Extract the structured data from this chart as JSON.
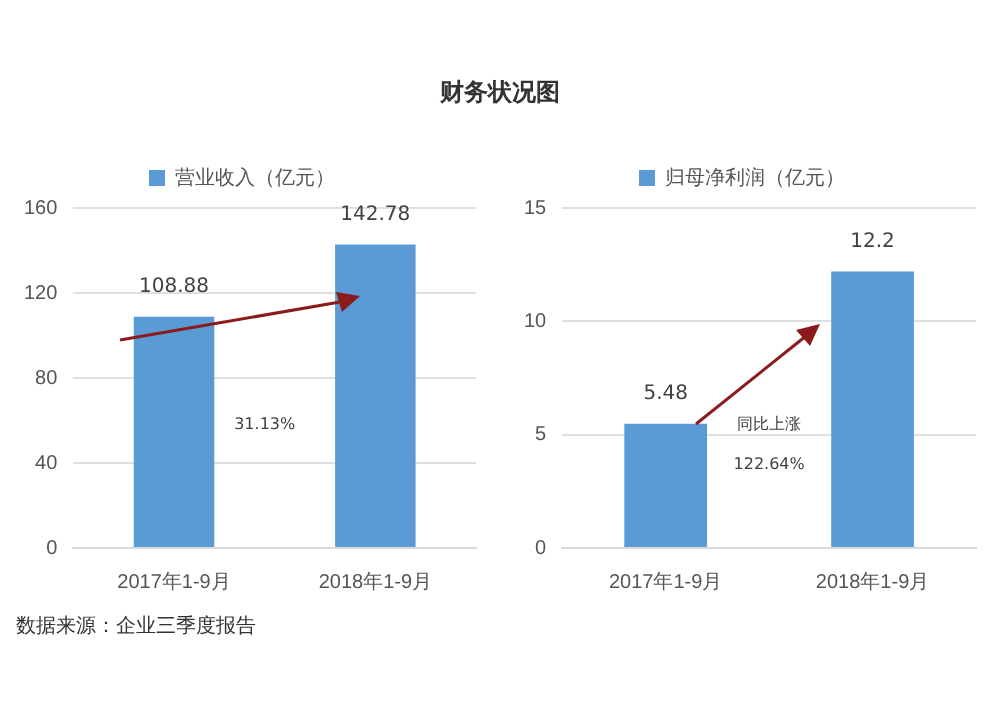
{
  "chart_data": [
    {
      "type": "bar",
      "title": "财务状况图",
      "categories": [
        "2017年1-9月",
        "2018年1-9月"
      ],
      "series": [
        {
          "name": "营业收入（亿元）",
          "color": "#5b9bd5",
          "values": [
            108.88,
            142.78
          ]
        }
      ],
      "ylim": [
        0,
        160
      ],
      "yticks": [
        0,
        40,
        80,
        120,
        160
      ],
      "grid": "y",
      "legend": "top",
      "data_labels": true,
      "annotations": [
        "31.13%",
        "数据来源：企业三季度报告"
      ]
    },
    {
      "type": "bar",
      "categories": [
        "2017年1-9月",
        "2018年1-9月"
      ],
      "series": [
        {
          "name": "归母净利润（亿元）",
          "color": "#5b9bd5",
          "values": [
            5.48,
            12.2
          ]
        }
      ],
      "ylim": [
        0,
        15
      ],
      "yticks": [
        0,
        5,
        10,
        15
      ],
      "grid": "y",
      "legend": "top",
      "data_labels": true,
      "annotations": [
        "同比上涨",
        "122.64%"
      ]
    }
  ]
}
